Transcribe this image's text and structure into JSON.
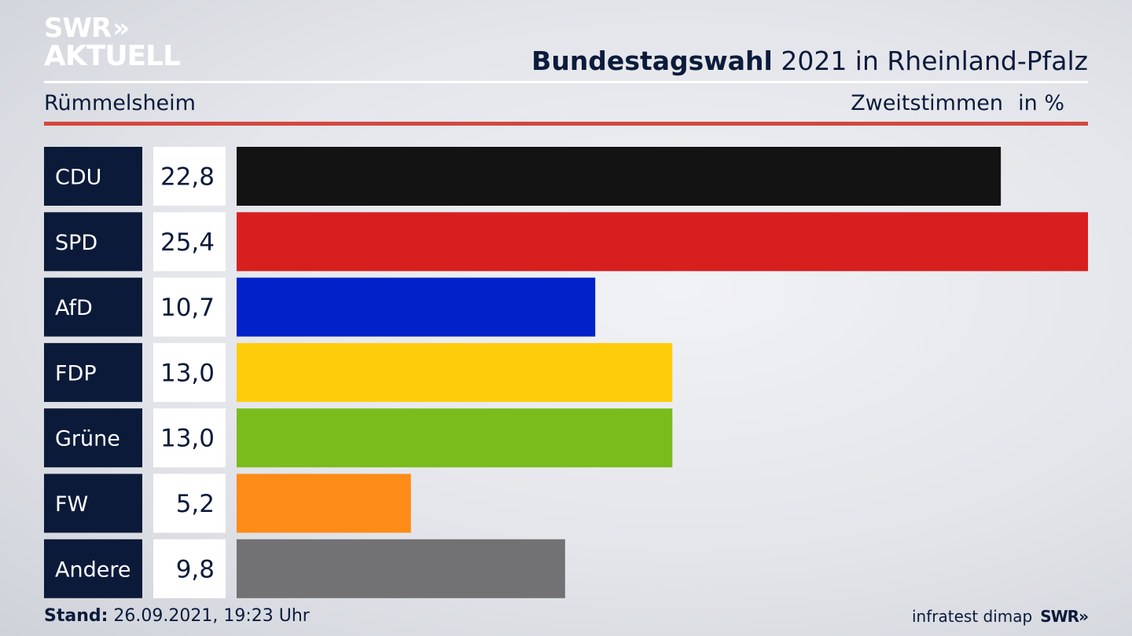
{
  "brand": {
    "line1": "SWR",
    "line2": "AKTUELL",
    "chevrons": "»"
  },
  "header": {
    "title_bold": "Bundestagswahl",
    "title_rest": "2021 in Rheinland-Pfalz",
    "region": "Rümmelsheim",
    "measure": "Zweitstimmen",
    "unit": "in %"
  },
  "chart_data": {
    "type": "bar",
    "orientation": "horizontal",
    "categories": [
      "CDU",
      "SPD",
      "AfD",
      "FDP",
      "Grüne",
      "FW",
      "Andere"
    ],
    "values": [
      22.8,
      25.4,
      10.7,
      13.0,
      13.0,
      5.2,
      9.8
    ],
    "value_labels": [
      "22,8",
      "25,4",
      "10,7",
      "13,0",
      "13,0",
      "5,2",
      "9,8"
    ],
    "colors": [
      "#131313",
      "#d81f1f",
      "#0321c9",
      "#fecc0b",
      "#79bc1c",
      "#fd8b18",
      "#727274"
    ],
    "title": "Bundestagswahl 2021 in Rheinland-Pfalz",
    "xlim": [
      0,
      25.4
    ],
    "grid": false,
    "legend": "none"
  },
  "footer": {
    "stand_label": "Stand:",
    "stand_value": "26.09.2021, 19:23 Uhr",
    "source": "infratest dimap",
    "brand": "SWR"
  },
  "colors": {
    "label_box": "#0c1a3a",
    "value_box": "#ffffff",
    "accent_red": "#d4473f",
    "text": "#0b1b3b"
  }
}
